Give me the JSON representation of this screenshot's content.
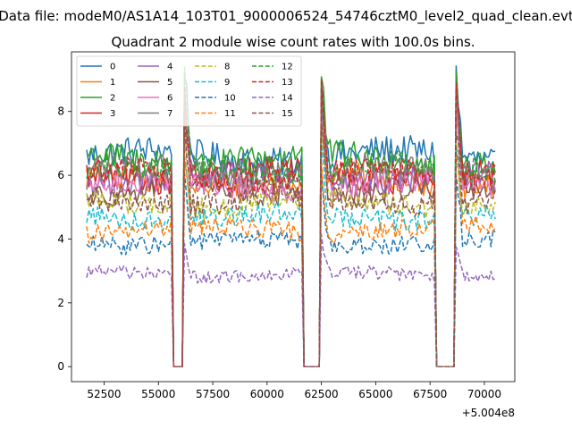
{
  "figure": {
    "suptitle": "Data file: modeM0/AS1A14_103T01_9000006524_54746cztM0_level2_quad_clean.evt"
  },
  "chart_data": {
    "type": "line",
    "title": "Quadrant 2 module wise count rates with 100.0s bins.",
    "xlabel": "",
    "ylabel": "",
    "x_offset_label": "+5.004e8",
    "xlim": [
      51000,
      71400
    ],
    "ylim": [
      -0.47,
      9.87
    ],
    "x_ticks": [
      52500,
      55000,
      57500,
      60000,
      62500,
      65000,
      67500,
      70000
    ],
    "x_tick_labels": [
      "52500",
      "55000",
      "57500",
      "60000",
      "62500",
      "65000",
      "67500",
      "70000"
    ],
    "y_ticks": [
      0,
      2,
      4,
      6,
      8
    ],
    "y_tick_labels": [
      "0",
      "2",
      "4",
      "6",
      "8"
    ],
    "x_start": 51700,
    "x_end": 70500,
    "bin_width": 100,
    "gaps": [
      [
        55650,
        56200
      ],
      [
        61650,
        62500
      ],
      [
        67750,
        68700
      ]
    ],
    "legend": {
      "location": "upper-left",
      "columns": 4
    },
    "series": [
      {
        "name": "0",
        "color": "#1f77b4",
        "style": "solid",
        "mean": 6.6,
        "peak": 9.3
      },
      {
        "name": "1",
        "color": "#ff7f0e",
        "style": "solid",
        "mean": 5.8,
        "peak": 8.2
      },
      {
        "name": "2",
        "color": "#2ca02c",
        "style": "solid",
        "mean": 6.5,
        "peak": 9.0
      },
      {
        "name": "3",
        "color": "#d62728",
        "style": "solid",
        "mean": 6.0,
        "peak": 8.7
      },
      {
        "name": "4",
        "color": "#9467bd",
        "style": "solid",
        "mean": 5.9,
        "peak": 8.0
      },
      {
        "name": "5",
        "color": "#8c564b",
        "style": "solid",
        "mean": 5.5,
        "peak": 7.8
      },
      {
        "name": "6",
        "color": "#e377c2",
        "style": "solid",
        "mean": 5.7,
        "peak": 8.1
      },
      {
        "name": "7",
        "color": "#7f7f7f",
        "style": "solid",
        "mean": 6.1,
        "peak": 8.4
      },
      {
        "name": "8",
        "color": "#bcbd22",
        "style": "dashed",
        "mean": 5.1,
        "peak": 7.5
      },
      {
        "name": "9",
        "color": "#17becf",
        "style": "dashed",
        "mean": 4.7,
        "peak": 7.0
      },
      {
        "name": "10",
        "color": "#1f77b4",
        "style": "dashed",
        "mean": 3.9,
        "peak": 6.0
      },
      {
        "name": "11",
        "color": "#ff7f0e",
        "style": "dashed",
        "mean": 4.3,
        "peak": 6.5
      },
      {
        "name": "12",
        "color": "#2ca02c",
        "style": "dashed",
        "mean": 6.2,
        "peak": 8.8
      },
      {
        "name": "13",
        "color": "#d62728",
        "style": "dashed",
        "mean": 6.0,
        "peak": 8.6
      },
      {
        "name": "14",
        "color": "#9467bd",
        "style": "dashed",
        "mean": 2.9,
        "peak": 4.0
      },
      {
        "name": "15",
        "color": "#8c564b",
        "style": "dashed",
        "mean": 5.2,
        "peak": 7.6
      }
    ]
  }
}
